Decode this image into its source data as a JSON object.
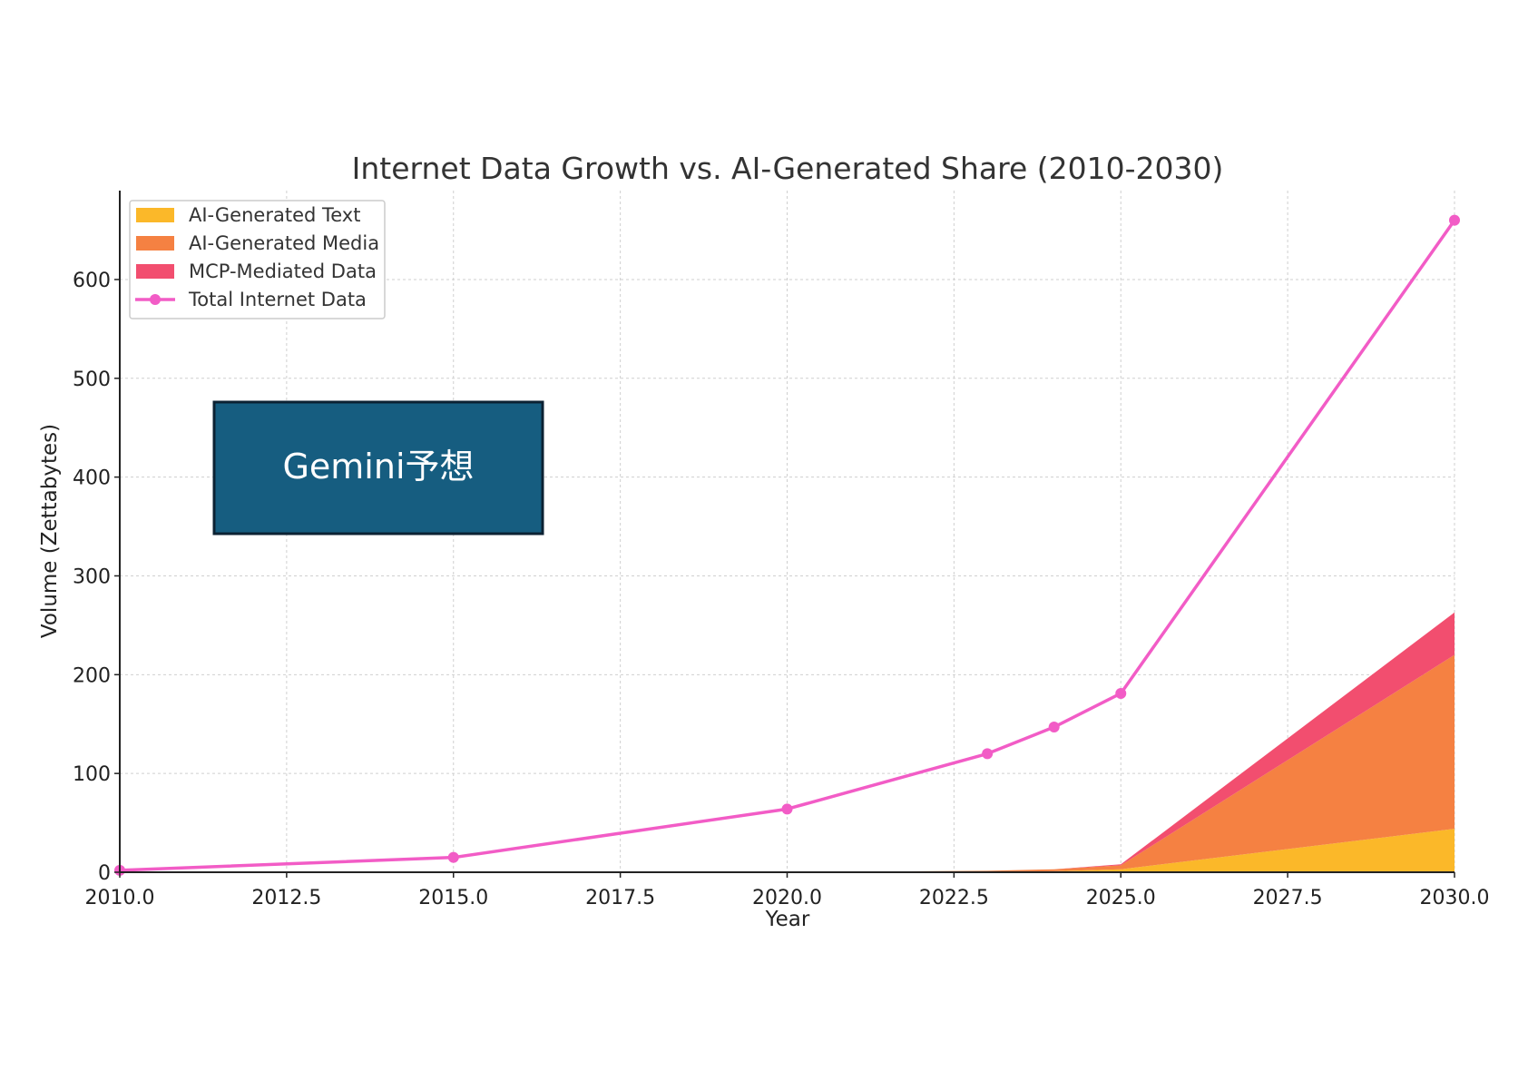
{
  "chart_data": {
    "type": "area",
    "title": "Internet Data Growth vs. AI-Generated Share (2010-2030)",
    "xlabel": "Year",
    "ylabel": "Volume (Zettabytes)",
    "xlim": [
      2010,
      2030
    ],
    "ylim": [
      0,
      690
    ],
    "x_ticks": [
      "2010.0",
      "2012.5",
      "2015.0",
      "2017.5",
      "2020.0",
      "2022.5",
      "2025.0",
      "2027.5",
      "2030.0"
    ],
    "y_ticks": [
      "0",
      "100",
      "200",
      "300",
      "400",
      "500",
      "600"
    ],
    "grid": true,
    "legend_position": "top-left",
    "x": [
      2010,
      2015,
      2020,
      2023,
      2024,
      2025,
      2030
    ],
    "stacked_series": [
      {
        "name": "AI-Generated Text",
        "color": "#FBB829",
        "values": [
          0,
          0,
          0,
          0.5,
          1,
          3,
          44
        ]
      },
      {
        "name": "AI-Generated Media",
        "color": "#F58142",
        "values": [
          0,
          0,
          0,
          1,
          2,
          4,
          176
        ]
      },
      {
        "name": "MCP-Mediated Data",
        "color": "#F24E6F",
        "values": [
          0,
          0,
          0,
          0,
          0,
          1,
          43
        ]
      }
    ],
    "line_series": {
      "name": "Total Internet Data",
      "color": "#F25CC6",
      "values": [
        2,
        15,
        64,
        120,
        147,
        181,
        660
      ]
    },
    "overlay_box": {
      "text": "Gemini予想",
      "fill": "#165D80",
      "border": "#0C2233"
    }
  }
}
